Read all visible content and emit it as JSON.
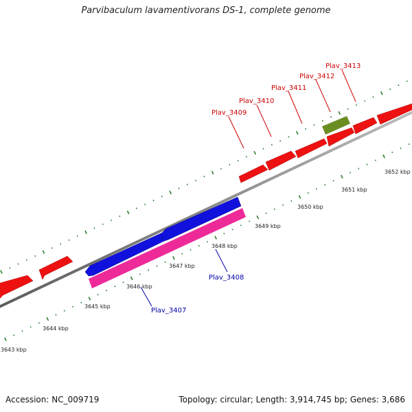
{
  "title": "Parvibaculum lavamentivorans DS-1, complete genome",
  "footer": {
    "accession": "Accession: NC_009719",
    "summary": "Topology: circular; Length: 3,914,745 bp; Genes: 3,686"
  },
  "colors": {
    "backbone": "#8a8a8a",
    "tick": "#2e7d2e",
    "forward_gene": "#ee1111",
    "reverse_gene": "#1111dd",
    "pink_gene": "#ee2a99",
    "green_gene": "#6b8e23",
    "forward_label": "#cc0000",
    "reverse_label": "#0000aa"
  },
  "scale": {
    "tick_labels": [
      "3643 kbp",
      "3644 kbp",
      "3645 kbp",
      "3646 kbp",
      "3647 kbp",
      "3648 kbp",
      "3649 kbp",
      "3650 kbp",
      "3651 kbp",
      "3652 kbp"
    ]
  },
  "genes": {
    "forward_labels": [
      "Plav_3409",
      "Plav_3410",
      "Plav_3411",
      "Plav_3412",
      "Plav_3413"
    ],
    "reverse_labels": [
      "Plav_3407",
      "Plav_3408"
    ]
  }
}
